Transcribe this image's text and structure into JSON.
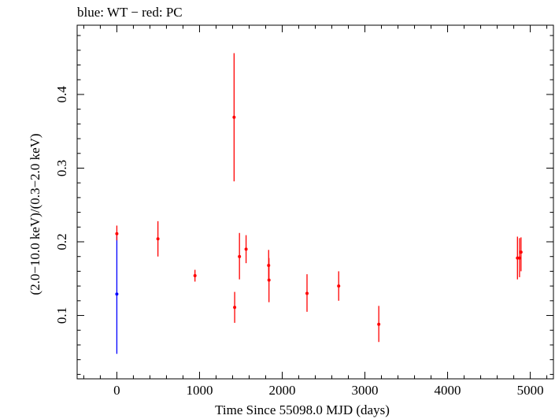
{
  "chart_data": {
    "type": "scatter",
    "title": "blue: WT − red: PC",
    "xlabel": "Time Since 55098.0 MJD (days)",
    "ylabel": "(2.0−10.0 keV)/(0.3−2.0 keV)",
    "xlim": [
      -480,
      5280
    ],
    "ylim": [
      0.014,
      0.494
    ],
    "x_ticks": [
      0,
      1000,
      2000,
      3000,
      4000,
      5000
    ],
    "y_ticks": [
      0.1,
      0.2,
      0.3,
      0.4
    ],
    "x_tick_labels": [
      "0",
      "1000",
      "2000",
      "3000",
      "4000",
      "5000"
    ],
    "y_tick_labels": [
      "0.1",
      "0.2",
      "0.3",
      "0.4"
    ],
    "grid": false,
    "series": [
      {
        "color": "#0000ff",
        "points": [
          {
            "x": 0,
            "y": 0.129,
            "ylo": 0.048,
            "yhi": 0.208
          }
        ]
      },
      {
        "color": "#ff0000",
        "points": [
          {
            "x": 0,
            "y": 0.211,
            "ylo": 0.202,
            "yhi": 0.222
          },
          {
            "x": 497,
            "y": 0.204,
            "ylo": 0.18,
            "yhi": 0.228
          },
          {
            "x": 945,
            "y": 0.154,
            "ylo": 0.146,
            "yhi": 0.162
          },
          {
            "x": 1418,
            "y": 0.369,
            "ylo": 0.282,
            "yhi": 0.456
          },
          {
            "x": 1425,
            "y": 0.111,
            "ylo": 0.09,
            "yhi": 0.132
          },
          {
            "x": 1483,
            "y": 0.18,
            "ylo": 0.149,
            "yhi": 0.212
          },
          {
            "x": 1563,
            "y": 0.19,
            "ylo": 0.171,
            "yhi": 0.209
          },
          {
            "x": 1836,
            "y": 0.168,
            "ylo": 0.148,
            "yhi": 0.189
          },
          {
            "x": 1840,
            "y": 0.148,
            "ylo": 0.118,
            "yhi": 0.178
          },
          {
            "x": 2300,
            "y": 0.13,
            "ylo": 0.105,
            "yhi": 0.156
          },
          {
            "x": 2683,
            "y": 0.14,
            "ylo": 0.12,
            "yhi": 0.16
          },
          {
            "x": 3168,
            "y": 0.088,
            "ylo": 0.064,
            "yhi": 0.113
          },
          {
            "x": 4845,
            "y": 0.178,
            "ylo": 0.149,
            "yhi": 0.207
          },
          {
            "x": 4870,
            "y": 0.178,
            "ylo": 0.152,
            "yhi": 0.205
          },
          {
            "x": 4888,
            "y": 0.186,
            "ylo": 0.16,
            "yhi": 0.206
          }
        ]
      }
    ]
  }
}
